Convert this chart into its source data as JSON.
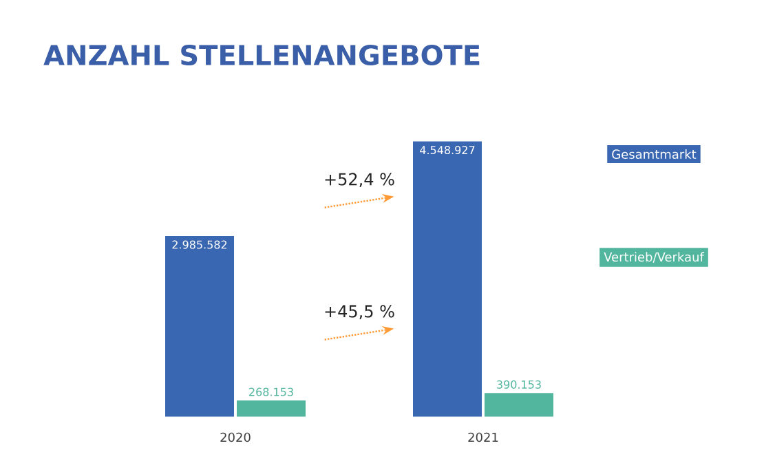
{
  "chart_data": {
    "type": "bar",
    "title": "ANZAHL STELLENANGEBOTE",
    "categories": [
      "2020",
      "2021"
    ],
    "series": [
      {
        "name": "Gesamtmarkt",
        "color": "#3a67b1",
        "values": [
          2985582,
          4548927
        ],
        "value_labels": [
          "2.985.582",
          "4.548.927"
        ]
      },
      {
        "name": "Vertrieb/Verkauf",
        "color": "#52b59d",
        "values": [
          268153,
          390153
        ],
        "value_labels": [
          "268.153",
          "390.153"
        ]
      }
    ],
    "annotations": [
      "+52,4 %",
      "+45,5 %"
    ],
    "legend": "right"
  }
}
